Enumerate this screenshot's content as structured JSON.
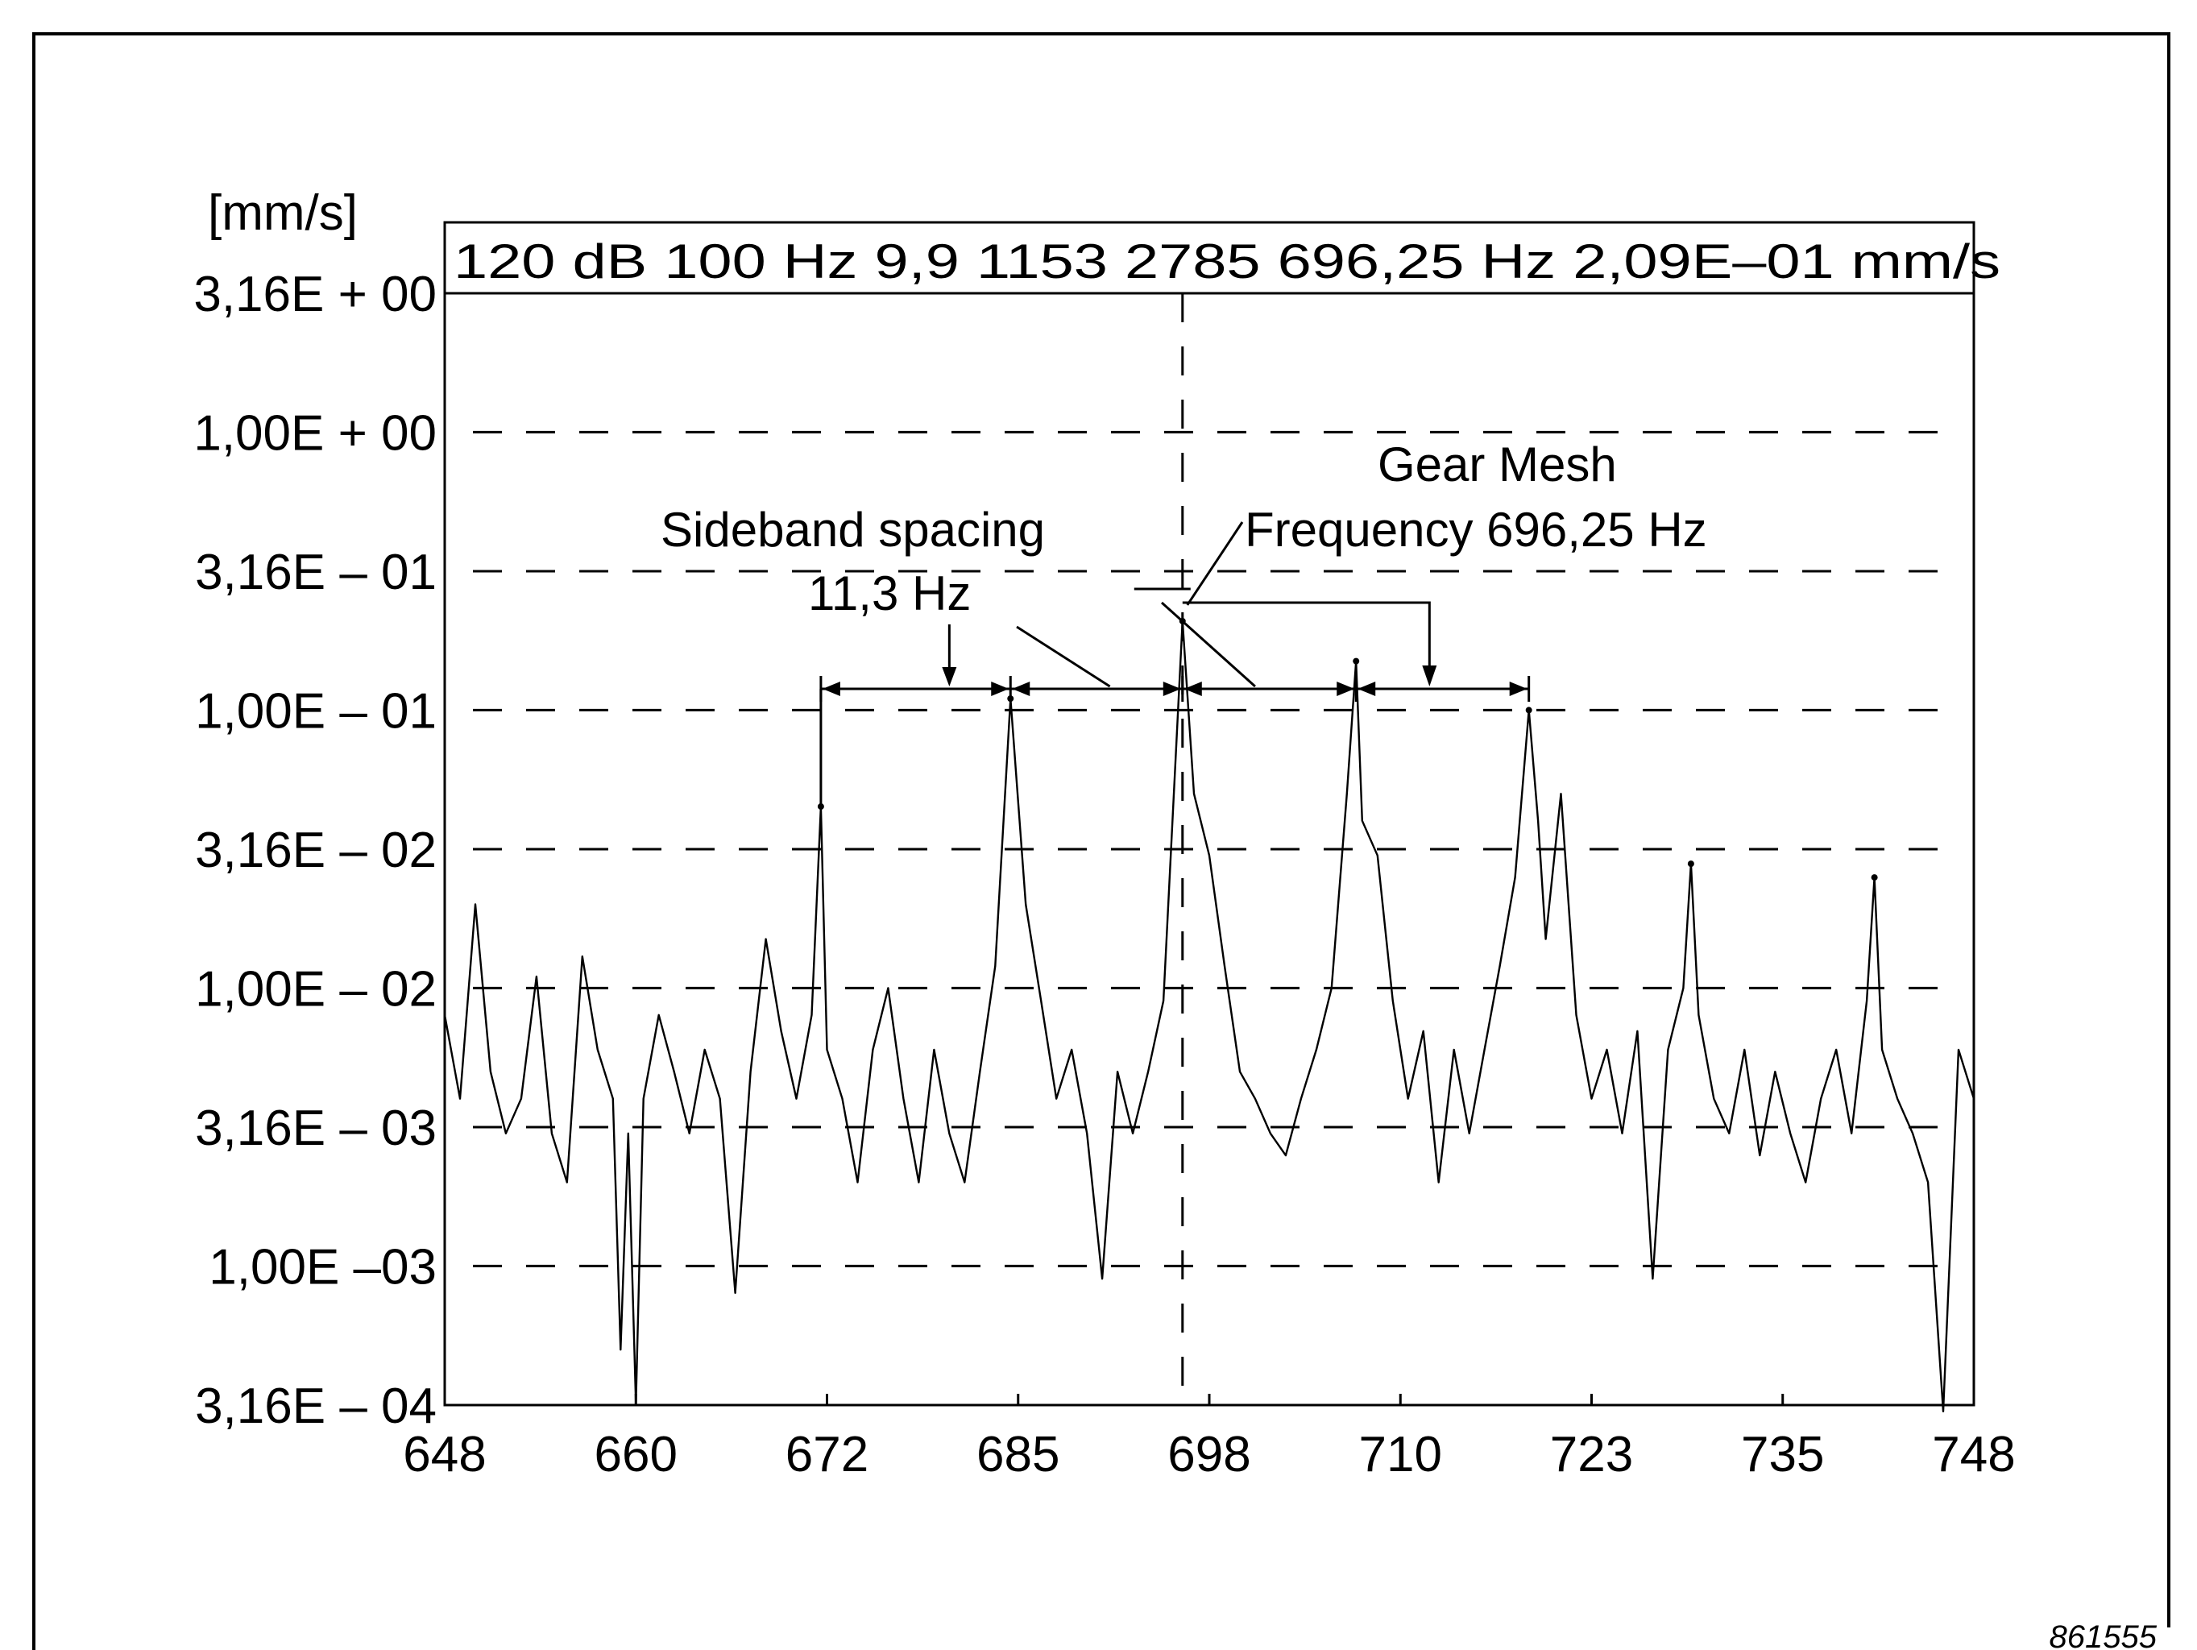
{
  "chart_data": {
    "type": "line",
    "title": "",
    "xlabel": "",
    "ylabel": "[mm/s]",
    "y_scale": "log",
    "ylim": [
      0.000316,
      3.16
    ],
    "xlim": [
      648,
      748
    ],
    "x_tick_labels": [
      "648",
      "660",
      "672",
      "685",
      "698",
      "710",
      "723",
      "735",
      "748"
    ],
    "y_tick_labels": [
      "3,16E + 00",
      "1,00E + 00",
      "3,16E – 01",
      "1,00E – 01",
      "3,16E – 02",
      "1,00E – 02",
      "3,16E – 03",
      "1,00E –03",
      "3,16E – 04"
    ],
    "grid": "dashed horizontal at each y tick",
    "header_text": "120 dB 100 Hz  9,9  1153   2785  696,25 Hz   2,09E–01  mm/s",
    "cursor_x": 696.25,
    "annotations": {
      "gear_mesh_line1": "Gear Mesh",
      "gear_mesh_line2": "Frequency 696,25 Hz",
      "sideband_line1": "Sideband spacing",
      "sideband_line2": "11,3 Hz"
    },
    "figure_number": "861555",
    "peaks": [
      {
        "x": 672.6,
        "y": 0.045
      },
      {
        "x": 685.0,
        "y": 0.11
      },
      {
        "x": 696.25,
        "y": 0.209
      },
      {
        "x": 707.6,
        "y": 0.15
      },
      {
        "x": 718.9,
        "y": 0.1
      },
      {
        "x": 729.5,
        "y": 0.028
      },
      {
        "x": 741.5,
        "y": 0.025
      }
    ],
    "series": [
      {
        "values": [
          [
            648,
            0.008
          ],
          [
            649,
            0.004
          ],
          [
            650,
            0.02
          ],
          [
            651,
            0.005
          ],
          [
            652,
            0.003
          ],
          [
            653,
            0.004
          ],
          [
            654,
            0.011
          ],
          [
            655,
            0.003
          ],
          [
            656,
            0.002
          ],
          [
            657,
            0.013
          ],
          [
            658,
            0.006
          ],
          [
            659,
            0.004
          ],
          [
            659.5,
            0.0005
          ],
          [
            660,
            0.003
          ],
          [
            660.5,
            0.00032
          ],
          [
            661,
            0.004
          ],
          [
            662,
            0.008
          ],
          [
            663,
            0.005
          ],
          [
            664,
            0.003
          ],
          [
            665,
            0.006
          ],
          [
            666,
            0.004
          ],
          [
            667,
            0.0008
          ],
          [
            668,
            0.005
          ],
          [
            669,
            0.015
          ],
          [
            670,
            0.007
          ],
          [
            671,
            0.004
          ],
          [
            672,
            0.008
          ],
          [
            672.6,
            0.045
          ],
          [
            673,
            0.006
          ],
          [
            674,
            0.004
          ],
          [
            675,
            0.002
          ],
          [
            676,
            0.006
          ],
          [
            677,
            0.01
          ],
          [
            678,
            0.004
          ],
          [
            679,
            0.002
          ],
          [
            680,
            0.006
          ],
          [
            681,
            0.003
          ],
          [
            682,
            0.002
          ],
          [
            683,
            0.005
          ],
          [
            684,
            0.012
          ],
          [
            685,
            0.11
          ],
          [
            686,
            0.02
          ],
          [
            687,
            0.009
          ],
          [
            688,
            0.004
          ],
          [
            689,
            0.006
          ],
          [
            690,
            0.003
          ],
          [
            691,
            0.0009
          ],
          [
            692,
            0.005
          ],
          [
            693,
            0.003
          ],
          [
            694,
            0.005
          ],
          [
            695,
            0.009
          ],
          [
            696.25,
            0.209
          ],
          [
            697,
            0.05
          ],
          [
            698,
            0.03
          ],
          [
            699,
            0.012
          ],
          [
            700,
            0.005
          ],
          [
            701,
            0.004
          ],
          [
            702,
            0.003
          ],
          [
            703,
            0.0025
          ],
          [
            704,
            0.004
          ],
          [
            705,
            0.006
          ],
          [
            706,
            0.01
          ],
          [
            707,
            0.05
          ],
          [
            707.6,
            0.15
          ],
          [
            708,
            0.04
          ],
          [
            709,
            0.03
          ],
          [
            710,
            0.009
          ],
          [
            711,
            0.004
          ],
          [
            712,
            0.007
          ],
          [
            713,
            0.002
          ],
          [
            714,
            0.006
          ],
          [
            715,
            0.003
          ],
          [
            716,
            0.006
          ],
          [
            717,
            0.012
          ],
          [
            718,
            0.025
          ],
          [
            718.9,
            0.1
          ],
          [
            719.5,
            0.04
          ],
          [
            720,
            0.015
          ],
          [
            721,
            0.05
          ],
          [
            722,
            0.008
          ],
          [
            723,
            0.004
          ],
          [
            724,
            0.006
          ],
          [
            725,
            0.003
          ],
          [
            726,
            0.007
          ],
          [
            727,
            0.0009
          ],
          [
            728,
            0.006
          ],
          [
            729,
            0.01
          ],
          [
            729.5,
            0.028
          ],
          [
            730,
            0.008
          ],
          [
            731,
            0.004
          ],
          [
            732,
            0.003
          ],
          [
            733,
            0.006
          ],
          [
            734,
            0.0025
          ],
          [
            735,
            0.005
          ],
          [
            736,
            0.003
          ],
          [
            737,
            0.002
          ],
          [
            738,
            0.004
          ],
          [
            739,
            0.006
          ],
          [
            740,
            0.003
          ],
          [
            741,
            0.009
          ],
          [
            741.5,
            0.025
          ],
          [
            742,
            0.006
          ],
          [
            743,
            0.004
          ],
          [
            744,
            0.003
          ],
          [
            745,
            0.002
          ],
          [
            746,
            0.0003
          ],
          [
            747,
            0.006
          ],
          [
            748,
            0.004
          ]
        ]
      }
    ]
  }
}
